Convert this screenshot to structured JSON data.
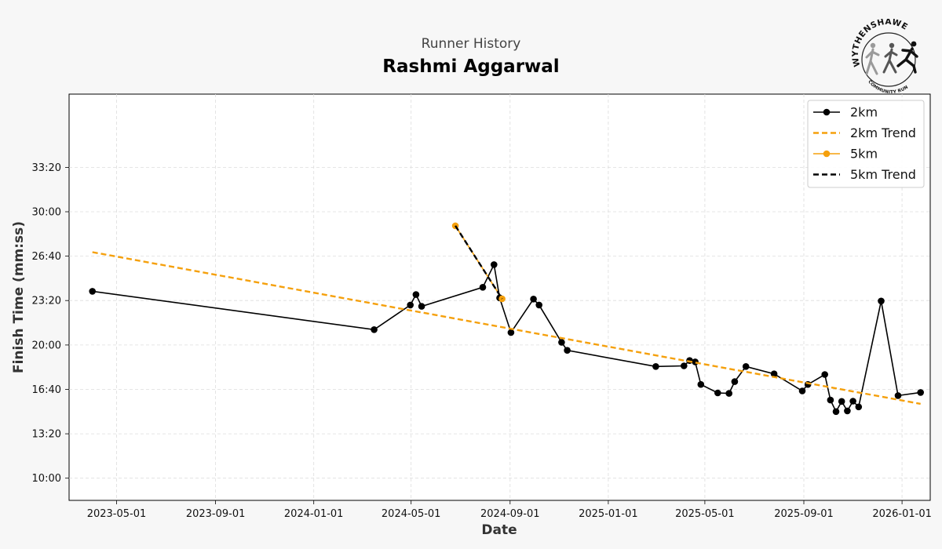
{
  "header": {
    "subtitle": "Runner History",
    "title": "Rashmi Aggarwal"
  },
  "logo": {
    "name": "WYTHENSHAWE",
    "tagline": "COMMUNITY RUN"
  },
  "chart_data": {
    "type": "line",
    "xlabel": "Date",
    "ylabel": "Finish Time (mm:ss)",
    "xlim": [
      "2023-03-03",
      "2026-02-05"
    ],
    "ylim_seconds": [
      500,
      2330
    ],
    "x_ticks": [
      "2023-05-01",
      "2023-09-01",
      "2024-01-01",
      "2024-05-01",
      "2024-09-01",
      "2025-01-01",
      "2025-05-01",
      "2025-09-01",
      "2026-01-01"
    ],
    "y_ticks": [
      "10:00",
      "13:20",
      "16:40",
      "20:00",
      "23:20",
      "26:40",
      "30:00",
      "33:20"
    ],
    "grid": true,
    "legend_position": "top-right",
    "colors": {
      "2km": "#000000",
      "5km": "#f5a00c",
      "2km_trend": "#f5a00c",
      "5km_trend": "#000000"
    },
    "series": [
      {
        "name": "2km",
        "style": "line-marker",
        "color": "#000000",
        "points": [
          [
            "2023-04-01",
            "24:02"
          ],
          [
            "2024-03-16",
            "21:09"
          ],
          [
            "2024-04-30",
            "23:00"
          ],
          [
            "2024-05-07",
            "23:47"
          ],
          [
            "2024-05-14",
            "22:54"
          ],
          [
            "2024-07-29",
            "24:20"
          ],
          [
            "2024-08-12",
            "26:02"
          ],
          [
            "2024-08-19",
            "23:32"
          ],
          [
            "2024-09-02",
            "20:56"
          ],
          [
            "2024-09-30",
            "23:27"
          ],
          [
            "2024-10-07",
            "23:00"
          ],
          [
            "2024-11-04",
            "20:12"
          ],
          [
            "2024-11-11",
            "19:36"
          ],
          [
            "2025-03-01",
            "18:23"
          ],
          [
            "2025-04-05",
            "18:26"
          ],
          [
            "2025-04-12",
            "18:50"
          ],
          [
            "2025-04-19",
            "18:44"
          ],
          [
            "2025-04-26",
            "17:02"
          ],
          [
            "2025-05-17",
            "16:24"
          ],
          [
            "2025-05-31",
            "16:22"
          ],
          [
            "2025-06-07",
            "17:15"
          ],
          [
            "2025-06-21",
            "18:23"
          ],
          [
            "2025-07-26",
            "17:50"
          ],
          [
            "2025-08-30",
            "16:33"
          ],
          [
            "2025-09-06",
            "17:02"
          ],
          [
            "2025-09-27",
            "17:47"
          ],
          [
            "2025-10-04",
            "15:52"
          ],
          [
            "2025-10-11",
            "15:00"
          ],
          [
            "2025-10-18",
            "15:46"
          ],
          [
            "2025-10-25",
            "15:03"
          ],
          [
            "2025-11-01",
            "15:47"
          ],
          [
            "2025-11-08",
            "15:21"
          ],
          [
            "2025-12-06",
            "23:18"
          ],
          [
            "2025-12-27",
            "16:12"
          ],
          [
            "2026-01-24",
            "16:26"
          ]
        ]
      },
      {
        "name": "2km Trend",
        "style": "dashed",
        "color": "#f5a00c",
        "points": [
          [
            "2023-04-01",
            "26:58"
          ],
          [
            "2026-01-24",
            "15:35"
          ]
        ]
      },
      {
        "name": "5km",
        "style": "line-marker",
        "color": "#f5a00c",
        "points": [
          [
            "2024-06-25",
            "28:57"
          ],
          [
            "2024-08-22",
            "23:28"
          ]
        ]
      },
      {
        "name": "5km Trend",
        "style": "dashed",
        "color": "#000000",
        "points": [
          [
            "2024-06-25",
            "28:57"
          ],
          [
            "2024-08-22",
            "23:28"
          ]
        ]
      }
    ]
  }
}
